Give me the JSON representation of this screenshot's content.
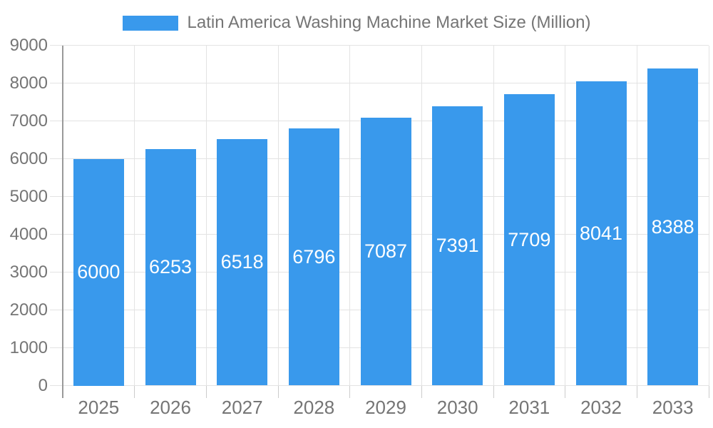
{
  "chart_data": {
    "type": "bar",
    "title": "Latin America Washing Machine Market Size (Million)",
    "categories": [
      "2025",
      "2026",
      "2027",
      "2028",
      "2029",
      "2030",
      "2031",
      "2032",
      "2033"
    ],
    "values": [
      6000,
      6253,
      6518,
      6796,
      7087,
      7391,
      7709,
      8041,
      8388
    ],
    "xlabel": "",
    "ylabel": "",
    "ylim": [
      0,
      9000
    ],
    "ytick_step": 1000,
    "y_tick_labels": [
      "0",
      "1000",
      "2000",
      "3000",
      "4000",
      "5000",
      "6000",
      "7000",
      "8000",
      "9000"
    ],
    "grid": true,
    "legend_position": "top-center",
    "colors": {
      "bar": "#3999EC",
      "bar_label_text": "#ffffff",
      "grid_line": "#e3e3e3",
      "axis_line": "#999999",
      "category_tick": "#cccccc",
      "axis_text": "#757575",
      "legend_text": "#757575",
      "background": "#ffffff"
    }
  }
}
